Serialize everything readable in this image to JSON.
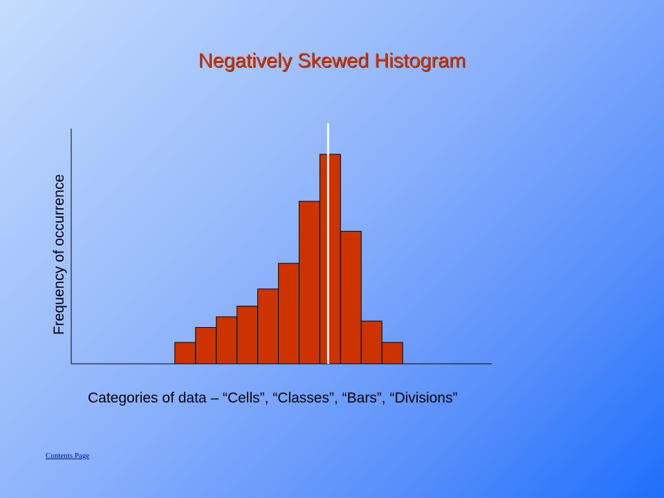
{
  "slide": {
    "title": "Negatively Skewed Histogram",
    "title_color": "#cc3300",
    "link_label": "Contents Page"
  },
  "chart_data": {
    "type": "bar",
    "title": "Negatively Skewed Histogram",
    "xlabel": "Categories of data – “Cells”, “Classes”, “Bars”, “Divisions”",
    "ylabel": "Frequency of occurrence",
    "bin_start": 5,
    "bin_width": 1,
    "values": [
      1,
      1.7,
      2.2,
      2.7,
      3.5,
      4.7,
      7.6,
      9.8,
      6.2,
      2,
      1
    ],
    "xlim": [
      0,
      20.3
    ],
    "ylim": [
      0,
      11
    ],
    "marker_x": 12.4,
    "bar_color": "#cc3300",
    "marker_color": "#ffffff",
    "grid": false,
    "legend": "none"
  }
}
